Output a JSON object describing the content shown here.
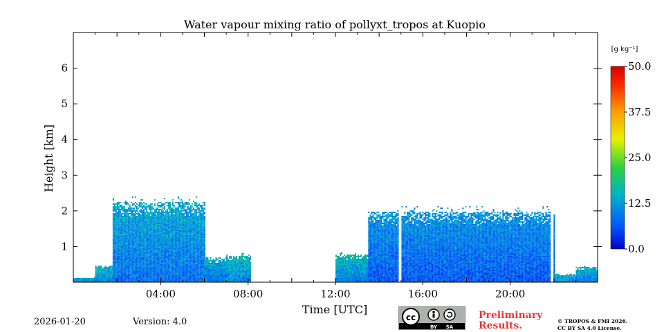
{
  "chart_data": {
    "type": "heatmap",
    "title": "Water vapour mixing ratio of pollyxt_tropos at Kuopio",
    "xlabel": "Time [UTC]",
    "ylabel": "Height [km]",
    "xlim_hours": [
      0,
      24
    ],
    "ylim_km": [
      0,
      7
    ],
    "x_ticks": [
      {
        "value": 4,
        "label": "04:00"
      },
      {
        "value": 8,
        "label": "08:00"
      },
      {
        "value": 12,
        "label": "12:00"
      },
      {
        "value": 16,
        "label": "16:00"
      },
      {
        "value": 20,
        "label": "20:00"
      }
    ],
    "y_ticks": [
      {
        "value": 1,
        "label": "1"
      },
      {
        "value": 2,
        "label": "2"
      },
      {
        "value": 3,
        "label": "3"
      },
      {
        "value": 4,
        "label": "4"
      },
      {
        "value": 5,
        "label": "5"
      },
      {
        "value": 6,
        "label": "6"
      }
    ],
    "colorbar": {
      "unit_label": "[g kg⁻¹]",
      "range": [
        0,
        50
      ],
      "ticks": [
        {
          "value": 0,
          "label": "0.0"
        },
        {
          "value": 12.5,
          "label": "12.5"
        },
        {
          "value": 25,
          "label": "25.0"
        },
        {
          "value": 37.5,
          "label": "37.5"
        },
        {
          "value": 50,
          "label": "50.0"
        }
      ]
    },
    "regions": [
      {
        "t_start": 0.0,
        "t_end": 1.6,
        "top_km": 0.15,
        "value": 9
      },
      {
        "t_start": 1.0,
        "t_end": 1.8,
        "top_km": 0.5,
        "value": 10
      },
      {
        "t_start": 1.8,
        "t_end": 6.0,
        "top_km": 2.25,
        "value": 8
      },
      {
        "t_start": 6.0,
        "t_end": 7.0,
        "top_km": 0.7,
        "value": 9
      },
      {
        "t_start": 7.0,
        "t_end": 8.1,
        "top_km": 0.75,
        "value": 10
      },
      {
        "t_start": 12.0,
        "t_end": 13.5,
        "top_km": 0.8,
        "value": 10
      },
      {
        "t_start": 13.5,
        "t_end": 22.0,
        "top_km": 2.0,
        "value": 6
      },
      {
        "t_start": 22.0,
        "t_end": 23.0,
        "top_km": 0.25,
        "value": 9
      },
      {
        "t_start": 23.0,
        "t_end": 24.0,
        "top_km": 0.45,
        "value": 9
      }
    ],
    "data_gaps_hours": [
      [
        14.9,
        15.02
      ],
      [
        21.85,
        21.98
      ]
    ]
  },
  "footer": {
    "date": "2026-01-20",
    "version": "Version: 4.0",
    "preliminary": [
      "Preliminary",
      "Results."
    ],
    "copyright": [
      "© TROPOS & FMI 2026.",
      "CC BY SA 4.0 License."
    ],
    "license_badge": [
      "BY",
      "SA"
    ]
  }
}
